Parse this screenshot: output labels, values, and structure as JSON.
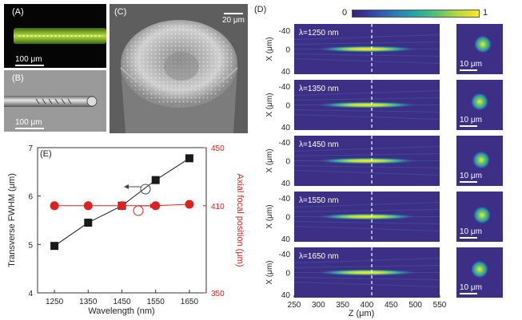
{
  "panels": {
    "a": {
      "label": "(A)",
      "scale": "100 μm"
    },
    "b": {
      "label": "(B)",
      "scale": "100 μm"
    },
    "c": {
      "label": "(C)",
      "scale": "20 μm"
    },
    "d": {
      "label": "(D)",
      "colorbar": {
        "min": "0",
        "max": "1"
      },
      "rows": [
        {
          "wavelength": "λ=1250 nm",
          "scale": "10 μm"
        },
        {
          "wavelength": "λ=1350 nm",
          "scale": "10 μm"
        },
        {
          "wavelength": "λ=1450 nm",
          "scale": "10 μm"
        },
        {
          "wavelength": "λ=1550 nm",
          "scale": "10 μm"
        },
        {
          "wavelength": "λ=1650 nm",
          "scale": "10 μm"
        }
      ],
      "y_axis_label": "X (μm)",
      "y_ticks": [
        "-40",
        "0",
        "40"
      ],
      "x_axis_label": "Z (μm)",
      "x_ticks": [
        "250",
        "300",
        "350",
        "400",
        "450",
        "500",
        "550"
      ]
    }
  },
  "chart_data": {
    "type": "scatter",
    "label": "(E)",
    "x": [
      1250,
      1350,
      1450,
      1550,
      1650
    ],
    "xlabel": "Wavelength (nm)",
    "xticks": [
      "1250",
      "1350",
      "1450",
      "1550",
      "1650"
    ],
    "series": [
      {
        "name": "Transverse FWHM",
        "axis": "left",
        "marker": "square",
        "color": "#1a1a1a",
        "values": [
          4.97,
          5.45,
          5.8,
          6.33,
          6.78
        ]
      },
      {
        "name": "Axial focal position",
        "axis": "right",
        "marker": "circle",
        "color": "#e02020",
        "values": [
          410,
          410,
          410,
          410,
          411
        ]
      }
    ],
    "ylabel_left": "Transverse FWHM (μm)",
    "ylim_left": [
      4,
      7
    ],
    "yticks_left": [
      "4",
      "5",
      "6",
      "7"
    ],
    "ylabel_right": "Axial focal position (μm)",
    "ylim_right": [
      350,
      450
    ],
    "yticks_right": [
      "350",
      "410",
      "450"
    ]
  }
}
